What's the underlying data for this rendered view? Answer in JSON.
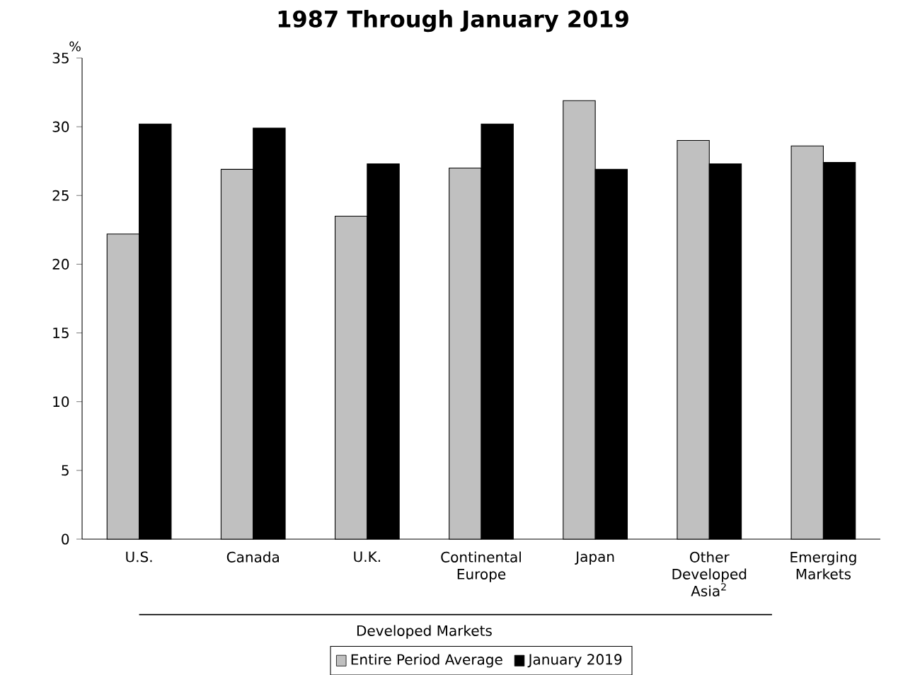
{
  "chart_data": {
    "type": "bar",
    "title": "1987 Through January 2019",
    "ylabel": "%",
    "categories": [
      "U.S.",
      "Canada",
      "U.K.",
      "Continental Europe",
      "Japan",
      "Other Developed Asia$^{2}$",
      "Emerging Markets"
    ],
    "series": [
      {
        "name": "Entire Period Average",
        "color": "#c0c0c0",
        "values": [
          22.2,
          26.9,
          23.5,
          27.0,
          31.9,
          29.0,
          28.6
        ]
      },
      {
        "name": "January 2019",
        "color": "#000000",
        "values": [
          30.2,
          29.9,
          27.3,
          30.2,
          26.9,
          27.3,
          27.4
        ]
      }
    ],
    "ylim": [
      0,
      35
    ],
    "yticks": [
      0,
      5,
      10,
      15,
      20,
      25,
      30,
      35
    ],
    "legend": "bottom",
    "grid": false,
    "annotations": [
      "Developed Markets"
    ]
  }
}
